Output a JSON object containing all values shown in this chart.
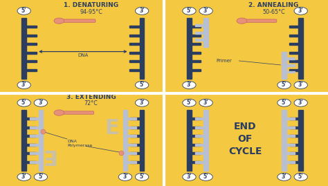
{
  "bg_color": "#F5C842",
  "dna_dark": "#2C3E60",
  "dna_light": "#B8BFD0",
  "thermo_bulb": "#E8917A",
  "thermo_outline": "#C97060",
  "text_color": "#2C3E60",
  "circle_bg": "#FFFFFF",
  "divider_color": "#FFFFFF",
  "title1": "1. DENATURING",
  "temp1": "94-95°C",
  "title2": "2. ANNEALING",
  "temp2": "50-65°C",
  "title3": "3. EXTENDING",
  "temp3": "72°C",
  "title4": "END\nOF\nCYCLE",
  "dna_label": "DNA",
  "primer_label": "Primer",
  "polymerase_label": "DNA\nPolymerase"
}
